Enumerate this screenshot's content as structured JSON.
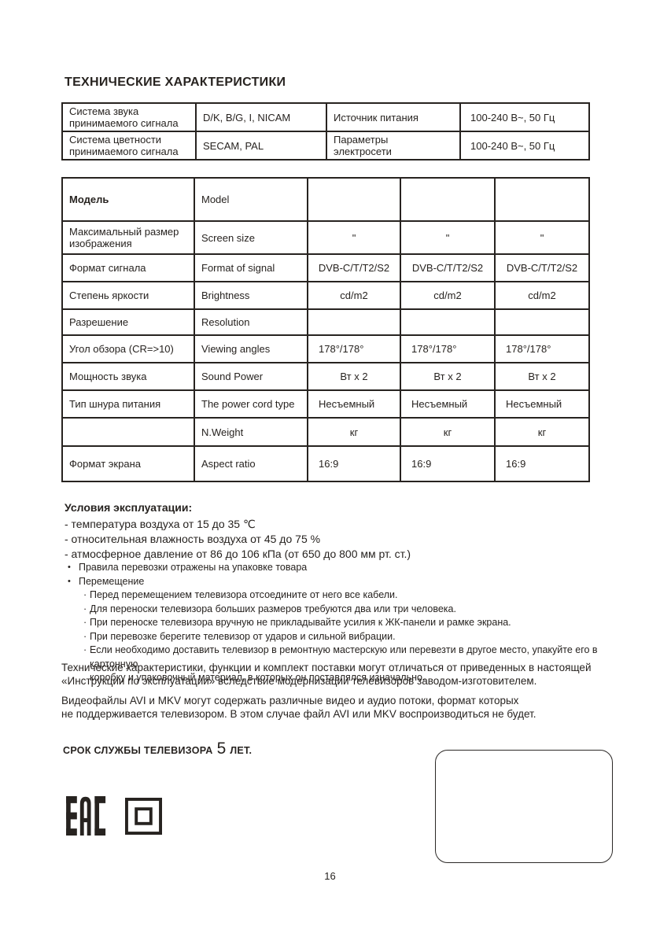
{
  "page": {
    "number": "16"
  },
  "title": "ТЕХНИЧЕСКИЕ ХАРАКТЕРИСТИКИ",
  "spec_table": {
    "rows": [
      [
        "Система звука\nпринимаемого сигнала",
        "D/K, B/G, I, NICAM",
        "Источник питания",
        "100-240 В~, 50 Гц"
      ],
      [
        "Система цветности\nпринимаемого сигнала",
        "SECAM, PAL",
        "Параметры\nэлектросети",
        "100-240 В~, 50 Гц"
      ]
    ]
  },
  "model_table": {
    "rows": [
      [
        "Модель",
        "Model",
        "",
        "",
        ""
      ],
      [
        "Максимальный размер\nизображения",
        "Screen size",
        "\"",
        "\"",
        "\""
      ],
      [
        "Формат сигнала",
        "Format of signal",
        "DVB-C/T/T2/S2",
        "DVB-C/T/T2/S2",
        "DVB-C/T/T2/S2"
      ],
      [
        "Степень яркости",
        "Brightness",
        "cd/m2",
        "cd/m2",
        "cd/m2"
      ],
      [
        "Разрешение",
        "Resolution",
        "",
        "",
        ""
      ],
      [
        "Угол обзора  (CR=>10)",
        "Viewing angles",
        "178°/178°",
        "178°/178°",
        "178°/178°"
      ],
      [
        "Мощность звука",
        "Sound Power",
        "Вт х 2",
        "Вт х 2",
        "Вт х 2"
      ],
      [
        "Тип шнура питания",
        "The  power cord type",
        "Несъемный",
        "Несъемный",
        "Несъемный"
      ],
      [
        "",
        "N.Weight",
        "кг",
        "кг",
        "кг"
      ],
      [
        "Формат экрана",
        "Aspect ratio",
        "16:9",
        "16:9",
        "16:9"
      ]
    ]
  },
  "operating_conditions": {
    "heading": "Условия эксплуатации:",
    "items": [
      "- температура воздуха от 15 до 35 ℃",
      "- относительная влажность воздуха от 45 до 75 %",
      "- атмосферное давление от 86 до 106 кПа (от 650 до 800 мм рт. ст.)"
    ]
  },
  "transport": {
    "bullet_char": "•",
    "sub_bullet_char": "·",
    "items": [
      "Правила перевозки отражены на упаковке товара",
      "Перемещение"
    ],
    "sub_items": [
      "Перед перемещением телевизора отсоедините от него все кабели.",
      "Для переноски телевизора больших размеров требуются два или три человека.",
      "При переноске телевизора вручную не прикладывайте усилия к ЖК-панели и рамке экрана.",
      "При перевозке берегите телевизор от ударов и сильной вибрации.",
      "Если необходимо доставить телевизор в ремонтную мастерскую или перевезти в другое место, упакуйте его в картонную\nкоробку и упаковочный материал, в которых он поставлялся изначально."
    ]
  },
  "paragraphs": {
    "disclaimer": "Технические характеристики, функции и комплект поставки могут отличаться от приведенных в настоящей\n«Инструкции по эксплуатации» вследствие модернизации телевизоров заводом-изготовителем.",
    "video_files": "Видеофайлы AVI и MKV могут содержать различные видео и аудио потоки, формат которых\nне поддерживается телевизором. В этом случае файл AVI или MKV воспроизводиться не будет."
  },
  "lifetime": {
    "prefix": "СРОК СЛУЖБЫ ТЕЛЕВИЗОРА",
    "years": "5",
    "suffix": "ЛЕТ."
  },
  "certification": {
    "eac_mark": "EAC",
    "class_ii_mark": "class-ii-double-square"
  }
}
